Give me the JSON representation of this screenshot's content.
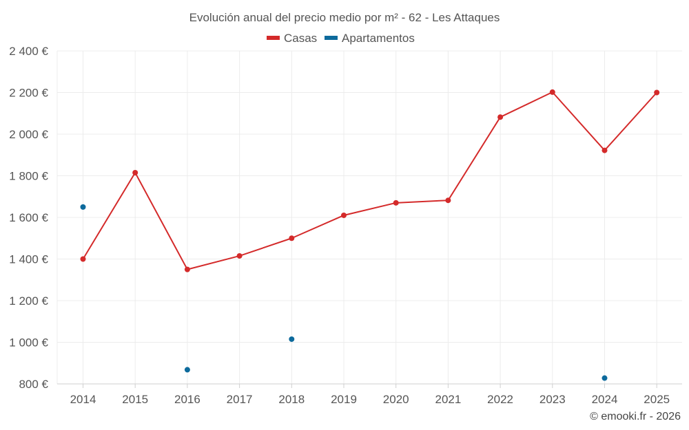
{
  "chart_data": {
    "type": "line",
    "title": "Evolución anual del precio medio por m² - 62 - Les Attaques",
    "categories": [
      "2014",
      "2015",
      "2016",
      "2017",
      "2018",
      "2019",
      "2020",
      "2021",
      "2022",
      "2023",
      "2024",
      "2025"
    ],
    "series": [
      {
        "name": "Casas",
        "color": "#d42a2a",
        "mode": "line",
        "values": [
          1400,
          1815,
          1350,
          1415,
          1500,
          1610,
          1670,
          1682,
          2082,
          2202,
          1922,
          2200
        ]
      },
      {
        "name": "Apartamentos",
        "color": "#0d6a9c",
        "mode": "markers",
        "values": [
          1650,
          null,
          868,
          null,
          1015,
          null,
          null,
          null,
          null,
          null,
          828,
          null
        ]
      }
    ],
    "ylim": [
      800,
      2400
    ],
    "yticks": [
      800,
      1000,
      1200,
      1400,
      1600,
      1800,
      2000,
      2200,
      2400
    ],
    "ytick_labels": [
      "800 €",
      "1 000 €",
      "1 200 €",
      "1 400 €",
      "1 600 €",
      "1 800 €",
      "2 000 €",
      "2 200 €",
      "2 400 €"
    ],
    "xlabel": "",
    "ylabel": "",
    "grid": true,
    "legend_position": "top-center"
  },
  "credit": "© emooki.fr - 2026"
}
